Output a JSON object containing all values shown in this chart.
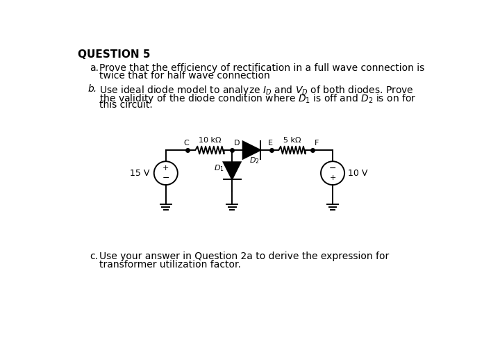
{
  "title": "QUESTION 5",
  "background_color": "#ffffff",
  "text_color": "#000000",
  "resistor1_label": "10 kΩ",
  "resistor2_label": "5 kΩ",
  "diode1_label": "D₁",
  "diode2_label": "D₂",
  "voltage1_label": "15 V",
  "voltage2_label": "10 V",
  "node_c": "C",
  "node_d": "D",
  "node_e": "E",
  "node_f": "F"
}
